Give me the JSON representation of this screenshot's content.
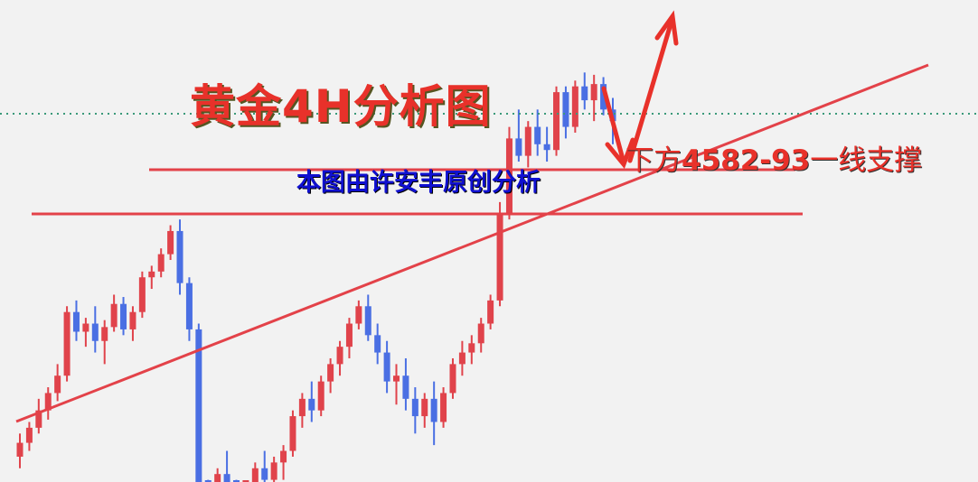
{
  "title": "黄金4H分析图",
  "subtitle": "本图由许安丰原创分析",
  "annotation": {
    "prefix": "下方",
    "level": "4582-93",
    "suffix": "一线支撑"
  },
  "colors": {
    "up": "#e0434b",
    "down": "#4a6fe3",
    "lines": "#e34249",
    "dotted": "#3a9a7a",
    "title": "#e8312a",
    "subtitle": "#1010d0"
  },
  "chart_data": {
    "type": "candlestick",
    "ohlc": [
      [
        4340,
        4360,
        4330,
        4352
      ],
      [
        4352,
        4370,
        4345,
        4365
      ],
      [
        4365,
        4390,
        4360,
        4380
      ],
      [
        4380,
        4400,
        4372,
        4395
      ],
      [
        4395,
        4420,
        4388,
        4410
      ],
      [
        4410,
        4470,
        4405,
        4465
      ],
      [
        4465,
        4475,
        4440,
        4448
      ],
      [
        4448,
        4460,
        4435,
        4455
      ],
      [
        4455,
        4470,
        4430,
        4440
      ],
      [
        4440,
        4458,
        4420,
        4452
      ],
      [
        4452,
        4480,
        4448,
        4472
      ],
      [
        4472,
        4478,
        4445,
        4450
      ],
      [
        4450,
        4470,
        4440,
        4465
      ],
      [
        4465,
        4500,
        4460,
        4495
      ],
      [
        4495,
        4505,
        4485,
        4500
      ],
      [
        4500,
        4520,
        4495,
        4515
      ],
      [
        4515,
        4540,
        4510,
        4535
      ],
      [
        4535,
        4545,
        4480,
        4490
      ],
      [
        4490,
        4495,
        4440,
        4450
      ],
      [
        4450,
        4455,
        4300,
        4305
      ],
      [
        4305,
        4320,
        4280,
        4290
      ],
      [
        4290,
        4330,
        4285,
        4325
      ],
      [
        4325,
        4345,
        4300,
        4310
      ],
      [
        4310,
        4320,
        4280,
        4300
      ],
      [
        4300,
        4315,
        4285,
        4310
      ],
      [
        4310,
        4335,
        4305,
        4330
      ],
      [
        4330,
        4345,
        4310,
        4320
      ],
      [
        4320,
        4340,
        4300,
        4335
      ],
      [
        4335,
        4350,
        4320,
        4345
      ],
      [
        4345,
        4380,
        4340,
        4375
      ],
      [
        4375,
        4395,
        4365,
        4390
      ],
      [
        4390,
        4405,
        4370,
        4380
      ],
      [
        4380,
        4410,
        4375,
        4405
      ],
      [
        4405,
        4425,
        4395,
        4420
      ],
      [
        4420,
        4440,
        4410,
        4435
      ],
      [
        4435,
        4460,
        4425,
        4455
      ],
      [
        4455,
        4475,
        4450,
        4470
      ],
      [
        4470,
        4480,
        4440,
        4445
      ],
      [
        4445,
        4455,
        4420,
        4430
      ],
      [
        4430,
        4440,
        4395,
        4405
      ],
      [
        4405,
        4420,
        4385,
        4410
      ],
      [
        4410,
        4425,
        4380,
        4390
      ],
      [
        4390,
        4400,
        4360,
        4375
      ],
      [
        4375,
        4395,
        4365,
        4390
      ],
      [
        4390,
        4405,
        4350,
        4370
      ],
      [
        4370,
        4400,
        4365,
        4395
      ],
      [
        4395,
        4425,
        4390,
        4420
      ],
      [
        4420,
        4440,
        4410,
        4430
      ],
      [
        4430,
        4445,
        4420,
        4438
      ],
      [
        4438,
        4460,
        4430,
        4455
      ],
      [
        4455,
        4480,
        4450,
        4475
      ],
      [
        4475,
        4560,
        4470,
        4550
      ],
      [
        4550,
        4625,
        4545,
        4615
      ],
      [
        4615,
        4640,
        4595,
        4600
      ],
      [
        4600,
        4630,
        4590,
        4625
      ],
      [
        4625,
        4640,
        4600,
        4610
      ],
      [
        4610,
        4625,
        4595,
        4605
      ],
      [
        4605,
        4660,
        4600,
        4655
      ],
      [
        4655,
        4660,
        4615,
        4625
      ],
      [
        4625,
        4665,
        4620,
        4660
      ],
      [
        4660,
        4672,
        4640,
        4648
      ],
      [
        4648,
        4670,
        4630,
        4662
      ],
      [
        4662,
        4668,
        4635,
        4640
      ],
      [
        4640,
        4650,
        4610,
        4630
      ]
    ],
    "ohlc_order": [
      "open",
      "high",
      "low",
      "close"
    ],
    "support_levels": [
      4588,
      4550
    ],
    "dotted_level": 4636,
    "grid": false
  }
}
